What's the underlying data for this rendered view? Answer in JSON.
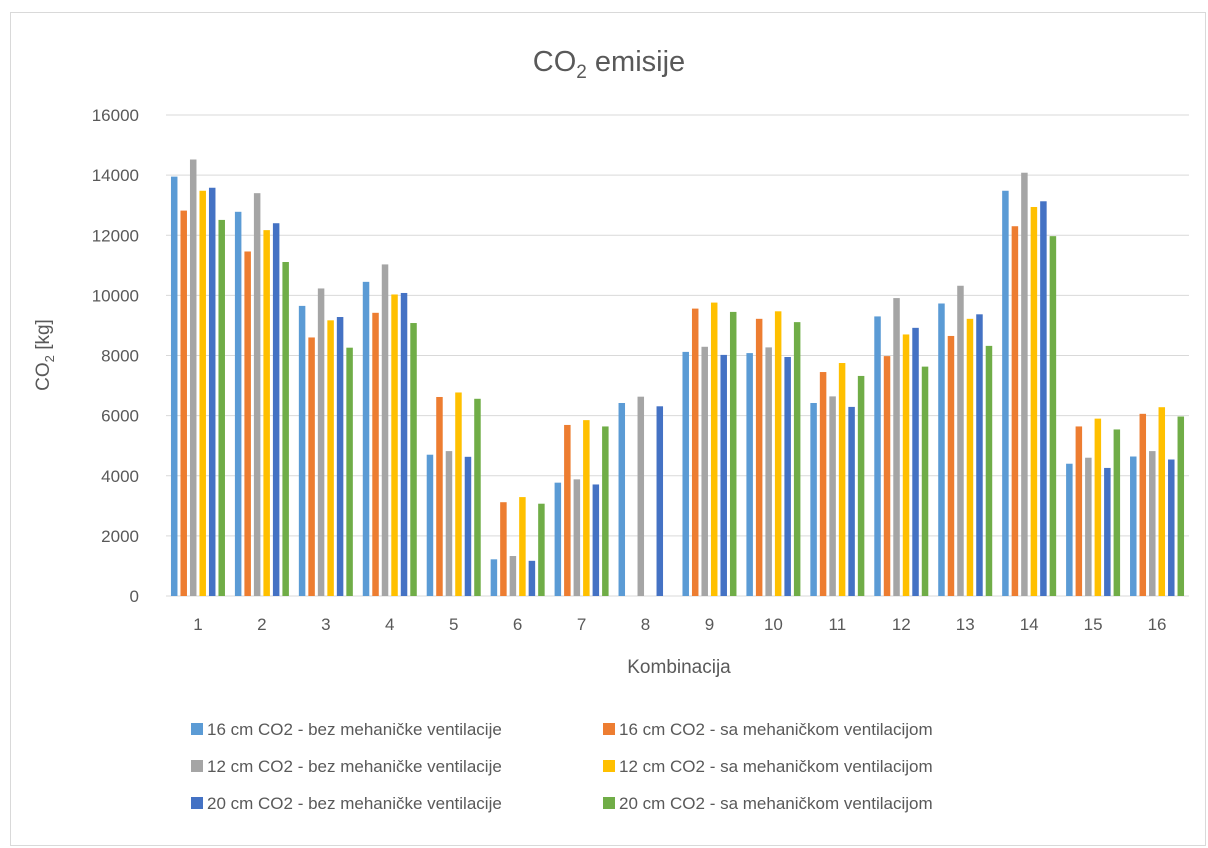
{
  "chart_data": {
    "type": "bar",
    "title": "CO",
    "title_sub": "2",
    "title_rest": " emisije",
    "xlabel": "Kombinacija",
    "ylabel": "CO",
    "ylabel_sub": "2",
    "ylabel_rest": " [kg]",
    "ylim": [
      0,
      16000
    ],
    "yticks": [
      0,
      2000,
      4000,
      6000,
      8000,
      10000,
      12000,
      14000,
      16000
    ],
    "grid": true,
    "legend_position": "bottom",
    "categories": [
      "1",
      "2",
      "3",
      "4",
      "5",
      "6",
      "7",
      "8",
      "9",
      "10",
      "11",
      "12",
      "13",
      "14",
      "15",
      "16"
    ],
    "series": [
      {
        "name": "16 cm CO2 - bez mehaničke ventilacije",
        "color": "#5b9bd5",
        "values": [
          13950,
          12780,
          9650,
          10450,
          4700,
          1220,
          3770,
          6420,
          8120,
          8080,
          6420,
          9300,
          9730,
          13480,
          4400,
          4640
        ]
      },
      {
        "name": "16 cm CO2 - sa mehaničkom ventilacijom",
        "color": "#ed7d31",
        "values": [
          12820,
          11460,
          8600,
          9420,
          6620,
          3120,
          5690,
          0,
          9560,
          9220,
          7450,
          7980,
          8650,
          12300,
          5640,
          6060
        ]
      },
      {
        "name": "12 cm CO2 - bez mehaničke ventilacije",
        "color": "#a5a5a5",
        "values": [
          14520,
          13400,
          10230,
          11030,
          4820,
          1330,
          3880,
          6630,
          8290,
          8270,
          6640,
          9910,
          10320,
          14080,
          4600,
          4820
        ]
      },
      {
        "name": "12 cm CO2 - sa mehaničkom ventilacijom",
        "color": "#ffc000",
        "values": [
          13480,
          12170,
          9170,
          10030,
          6770,
          3290,
          5850,
          0,
          9760,
          9470,
          7750,
          8700,
          9220,
          12940,
          5900,
          6280
        ]
      },
      {
        "name": "20 cm CO2 - bez mehaničke ventilacije",
        "color": "#4472c4",
        "values": [
          13580,
          12400,
          9280,
          10080,
          4630,
          1170,
          3710,
          6310,
          8020,
          7950,
          6290,
          8920,
          9370,
          13130,
          4260,
          4540
        ]
      },
      {
        "name": "20 cm CO2 - sa mehaničkom ventilacijom",
        "color": "#70ad47",
        "values": [
          12510,
          11110,
          8260,
          9080,
          6560,
          3070,
          5640,
          0,
          9450,
          9110,
          7320,
          7630,
          8320,
          11970,
          5540,
          5970
        ]
      }
    ]
  }
}
